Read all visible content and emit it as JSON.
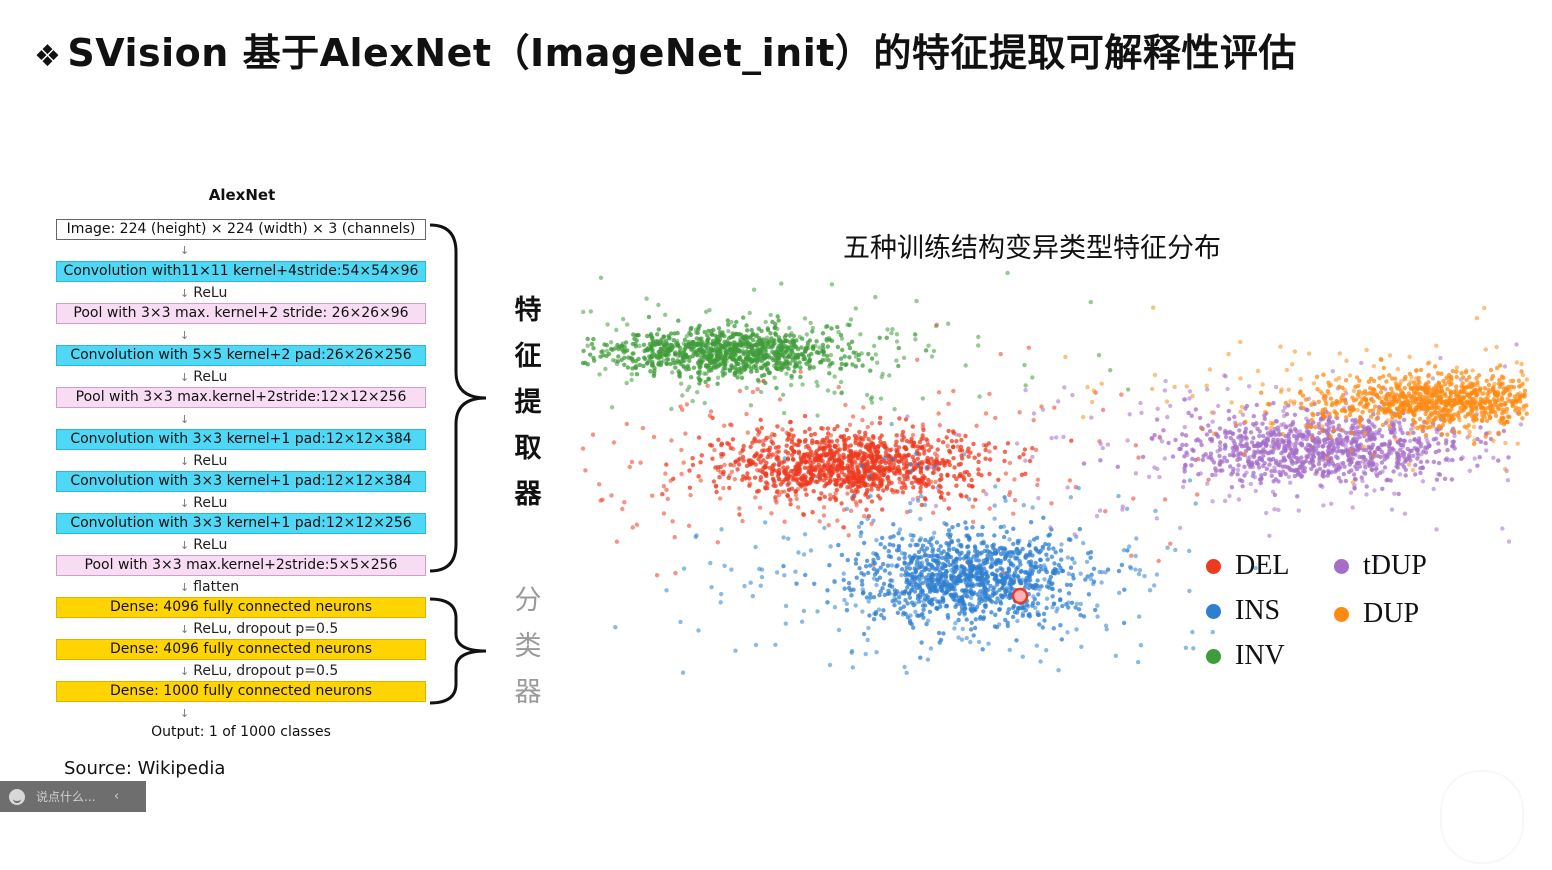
{
  "slide": {
    "bullet": "❖",
    "title": "SVision 基于AlexNet（ImageNet_init）的特征提取可解释性评估"
  },
  "architecture": {
    "title": "AlexNet",
    "layers": [
      {
        "type": "img",
        "label": "Image: 224 (height) × 224 (width) × 3 (channels)"
      },
      {
        "type": "conv",
        "label": "Convolution with11×11 kernel+4stride:54×54×96"
      },
      {
        "type": "pool",
        "label": "Pool with 3×3 max. kernel+2 stride: 26×26×96"
      },
      {
        "type": "conv",
        "label": "Convolution with 5×5 kernel+2 pad:26×26×256"
      },
      {
        "type": "pool",
        "label": "Pool with 3×3 max.kernel+2stride:12×12×256"
      },
      {
        "type": "conv",
        "label": "Convolution with 3×3 kernel+1 pad:12×12×384"
      },
      {
        "type": "conv",
        "label": "Convolution with 3×3 kernel+1 pad:12×12×384"
      },
      {
        "type": "conv",
        "label": "Convolution with 3×3 kernel+1 pad:12×12×256"
      },
      {
        "type": "pool",
        "label": "Pool with 3×3 max.kernel+2stride:5×5×256"
      },
      {
        "type": "dense",
        "label": "Dense: 4096 fully connected neurons"
      },
      {
        "type": "dense",
        "label": "Dense: 4096 fully connected neurons"
      },
      {
        "type": "dense",
        "label": "Dense: 1000 fully connected neurons"
      }
    ],
    "connectors": [
      "",
      "ReLu",
      "",
      "ReLu",
      "",
      "ReLu",
      "ReLu",
      "ReLu",
      "flatten",
      "ReLu, dropout p=0.5",
      "ReLu, dropout p=0.5"
    ],
    "output": "Output: 1 of 1000 classes",
    "source": "Source: Wikipedia"
  },
  "groups": {
    "feature_extractor": [
      "特",
      "征",
      "提",
      "取",
      "器"
    ],
    "classifier": [
      "分",
      "类",
      "器"
    ]
  },
  "chart_data": {
    "type": "scatter",
    "title": "五种训练结构变异类型特征分布",
    "xlabel": "",
    "ylabel": "",
    "grid": false,
    "axes": "none",
    "legend_position": "bottom-right",
    "series": [
      {
        "name": "DEL",
        "color": "#ee3a1f",
        "center": [
          -0.15,
          0.45
        ],
        "spread": [
          0.11,
          0.05
        ],
        "count": 1300
      },
      {
        "name": "INS",
        "color": "#2f7fd0",
        "center": [
          0.05,
          0.1
        ],
        "spread": [
          0.09,
          0.07
        ],
        "count": 1300
      },
      {
        "name": "INV",
        "color": "#3f9c3a",
        "center": [
          -0.35,
          0.8
        ],
        "spread": [
          0.1,
          0.035
        ],
        "count": 1100
      },
      {
        "name": "tDUP",
        "color": "#a66dc8",
        "center": [
          0.65,
          0.5
        ],
        "spread": [
          0.12,
          0.05
        ],
        "count": 1100
      },
      {
        "name": "DUP",
        "color": "#ff8a12",
        "center": [
          0.85,
          0.65
        ],
        "spread": [
          0.1,
          0.04
        ],
        "count": 1000
      }
    ],
    "xlim": [
      -0.6,
      1.0
    ],
    "ylim": [
      -0.2,
      1.1
    ]
  },
  "chat": {
    "placeholder": "说点什么...",
    "collapse": "‹"
  }
}
